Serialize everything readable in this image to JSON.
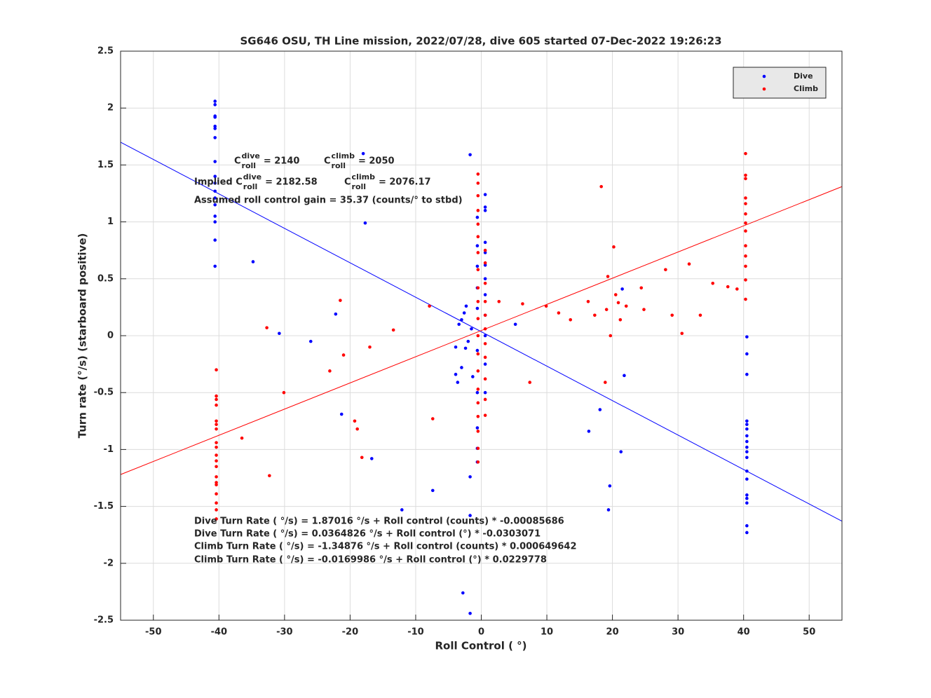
{
  "chart_data": {
    "type": "scatter",
    "title": "SG646 OSU, TH Line mission, 2022/07/28, dive 605 started 07-Dec-2022 19:26:23",
    "xlabel": "Roll Control ( °)",
    "ylabel": "Turn rate (°/s) (starboard positive)",
    "xlim": [
      -55,
      55
    ],
    "ylim": [
      -2.5,
      2.5
    ],
    "xticks": [
      -50,
      -40,
      -30,
      -20,
      -10,
      0,
      10,
      20,
      30,
      40,
      50
    ],
    "yticks": [
      -2.5,
      -2,
      -1.5,
      -1,
      -0.5,
      0,
      0.5,
      1,
      1.5,
      2,
      2.5
    ],
    "grid": true,
    "legend": "upper right",
    "series": [
      {
        "name": "Dive",
        "color": "#0000ff",
        "x": [
          -40.6,
          -40.6,
          -40.6,
          -40.6,
          -40.6,
          -40.6,
          -40.6,
          -40.6,
          -40.6,
          -40.6,
          -40.6,
          -40.6,
          -40.6,
          -40.6,
          -40.6,
          -40.6,
          -40.6,
          -34.8,
          -30.8,
          -26.0,
          -22.2,
          -21.3,
          -18.0,
          -17.7,
          -16.7,
          -12.1,
          -7.4,
          -1.7,
          -2.8,
          -1.7,
          -1.7,
          -1.7,
          -3.9,
          -3.4,
          -3.0,
          -2.3,
          -2.6,
          -3.9,
          -3.6,
          -3.0,
          -2.4,
          -2.0,
          -1.5,
          -1.3,
          -0.6,
          -0.6,
          -0.6,
          -0.6,
          -0.6,
          -0.6,
          -0.6,
          -0.6,
          -0.6,
          -0.6,
          0.6,
          0.6,
          0.6,
          0.6,
          0.6,
          0.6,
          0.6,
          0.6,
          0.6,
          0.6,
          0.6,
          0.6,
          5.2,
          16.4,
          18.1,
          19.4,
          19.6,
          21.3,
          21.5,
          21.8,
          40.5,
          40.5,
          40.5,
          40.5,
          40.5,
          40.5,
          40.5,
          40.5,
          40.5,
          40.5,
          40.5,
          40.5,
          40.5,
          40.5,
          40.5,
          40.5,
          40.5,
          40.5
        ],
        "values": [
          2.06,
          2.03,
          1.93,
          1.92,
          1.84,
          1.82,
          1.74,
          1.53,
          1.4,
          1.34,
          1.27,
          1.21,
          1.15,
          1.05,
          1.0,
          0.84,
          0.61,
          0.65,
          0.02,
          -0.05,
          0.19,
          -0.69,
          1.6,
          0.99,
          -1.08,
          -1.53,
          -1.36,
          1.59,
          -2.26,
          -2.44,
          -1.58,
          -1.24,
          -0.1,
          0.1,
          0.14,
          0.26,
          0.2,
          -0.34,
          -0.41,
          -0.28,
          -0.11,
          -0.05,
          0.06,
          -0.36,
          1.04,
          0.79,
          0.61,
          0.42,
          0.24,
          -0.13,
          -0.5,
          -0.81,
          -0.99,
          -1.11,
          1.24,
          1.13,
          1.1,
          0.82,
          0.73,
          0.62,
          0.5,
          0.36,
          0.18,
          0,
          -0.25,
          -0.5,
          0.1,
          -0.84,
          -0.65,
          -1.53,
          -1.32,
          -1.02,
          0.41,
          -0.35,
          -0.01,
          -0.16,
          -0.34,
          -0.75,
          -0.78,
          -0.82,
          -0.88,
          -0.93,
          -0.98,
          -1.02,
          -1.07,
          -1.19,
          -1.26,
          -1.4,
          -1.43,
          -1.47,
          -1.67,
          -1.73
        ]
      },
      {
        "name": "Climb",
        "color": "#ff0000",
        "x": [
          -40.4,
          -40.4,
          -40.4,
          -40.4,
          -40.4,
          -40.4,
          -40.4,
          -40.4,
          -40.4,
          -40.4,
          -40.4,
          -40.4,
          -40.4,
          -40.4,
          -40.4,
          -40.4,
          -40.4,
          -40.4,
          -40.4,
          -36.5,
          -32.7,
          -32.3,
          -30.1,
          -23.1,
          -21.5,
          -21.0,
          -19.3,
          -18.9,
          -18.2,
          -17.0,
          -13.4,
          -7.9,
          -7.4,
          -0.5,
          -0.5,
          -0.5,
          -0.5,
          -0.5,
          -0.5,
          -0.5,
          -0.5,
          -0.5,
          -0.5,
          -0.5,
          -0.5,
          -0.5,
          -0.5,
          -0.5,
          -0.5,
          -0.5,
          -0.5,
          -0.5,
          -0.5,
          0.6,
          0.6,
          0.6,
          0.6,
          0.6,
          0.6,
          0.6,
          0.6,
          0.6,
          0.6,
          0.6,
          2.7,
          6.3,
          7.4,
          9.9,
          11.8,
          13.6,
          16.3,
          17.3,
          18.3,
          18.9,
          19.1,
          19.3,
          19.7,
          20.2,
          20.5,
          20.9,
          21.2,
          22.1,
          24.4,
          24.8,
          28.1,
          29.1,
          30.6,
          31.7,
          33.4,
          35.3,
          37.6,
          39.0,
          40.3,
          40.3,
          40.3,
          40.3,
          40.3,
          40.3,
          40.3,
          40.3,
          40.3,
          40.3,
          40.3,
          40.3,
          40.3
        ],
        "values": [
          -0.3,
          -0.53,
          -0.56,
          -0.61,
          -0.75,
          -0.78,
          -0.82,
          -0.94,
          -0.98,
          -1.05,
          -1.1,
          -1.15,
          -1.24,
          -1.29,
          -1.31,
          -1.39,
          -1.47,
          -1.53,
          -1.61,
          -0.9,
          0.07,
          -1.23,
          -0.5,
          -0.31,
          0.31,
          -0.17,
          -0.75,
          -0.82,
          -1.07,
          -0.1,
          0.05,
          0.26,
          -0.73,
          1.42,
          1.34,
          1.23,
          1.1,
          0.98,
          0.87,
          0.73,
          0.58,
          0.42,
          0.3,
          0.15,
          0,
          -0.16,
          -0.31,
          -0.47,
          -0.59,
          -0.71,
          -0.84,
          -0.99,
          -1.11,
          0.75,
          0.64,
          0.46,
          0.3,
          0.18,
          0.06,
          -0.07,
          -0.19,
          -0.38,
          -0.56,
          -0.7,
          0.3,
          0.28,
          -0.41,
          0.26,
          0.2,
          0.14,
          0.3,
          0.18,
          1.31,
          -0.41,
          0.23,
          0.52,
          0,
          0.78,
          0.36,
          0.29,
          0.14,
          0.26,
          0.42,
          0.23,
          0.58,
          0.18,
          0.02,
          0.63,
          0.18,
          0.46,
          0.43,
          0.41,
          1.6,
          1.41,
          1.38,
          1.21,
          1.16,
          1.07,
          0.99,
          0.92,
          0.79,
          0.7,
          0.61,
          0.49,
          0.32
        ]
      }
    ],
    "fits": [
      {
        "color": "#0000ff",
        "x": [
          -55,
          55
        ],
        "values": [
          1.7,
          -1.63
        ]
      },
      {
        "color": "#ff0000",
        "x": [
          -55,
          55
        ],
        "values": [
          -1.22,
          1.31
        ]
      }
    ],
    "coefficients": [
      {
        "prefix": "C",
        "sup": "dive",
        "sub": "roll",
        "suffix": "= 2140"
      },
      {
        "prefix": "C",
        "sup": "climb",
        "sub": "roll",
        "suffix": "= 2050"
      },
      {
        "prefix": "Implied C",
        "sup": "dive",
        "sub": "roll",
        "suffix": "= 2182.58"
      },
      {
        "prefix": "C",
        "sup": "climb",
        "sub": "roll",
        "suffix": "= 2076.17"
      }
    ],
    "annotations": [
      "Assumed roll control gain = 35.37 (counts/° to stbd)",
      "Dive Turn Rate ( °/s) = 1.87016 °/s + Roll control (counts) * -0.00085686",
      "Dive Turn Rate ( °/s) = 0.0364826 °/s + Roll control (°) * -0.0303071",
      "Climb Turn Rate ( °/s) = -1.34876 °/s + Roll control (counts) * 0.000649642",
      "Climb Turn Rate ( °/s) = -0.0169986 °/s + Roll control (°) * 0.0229778"
    ]
  }
}
